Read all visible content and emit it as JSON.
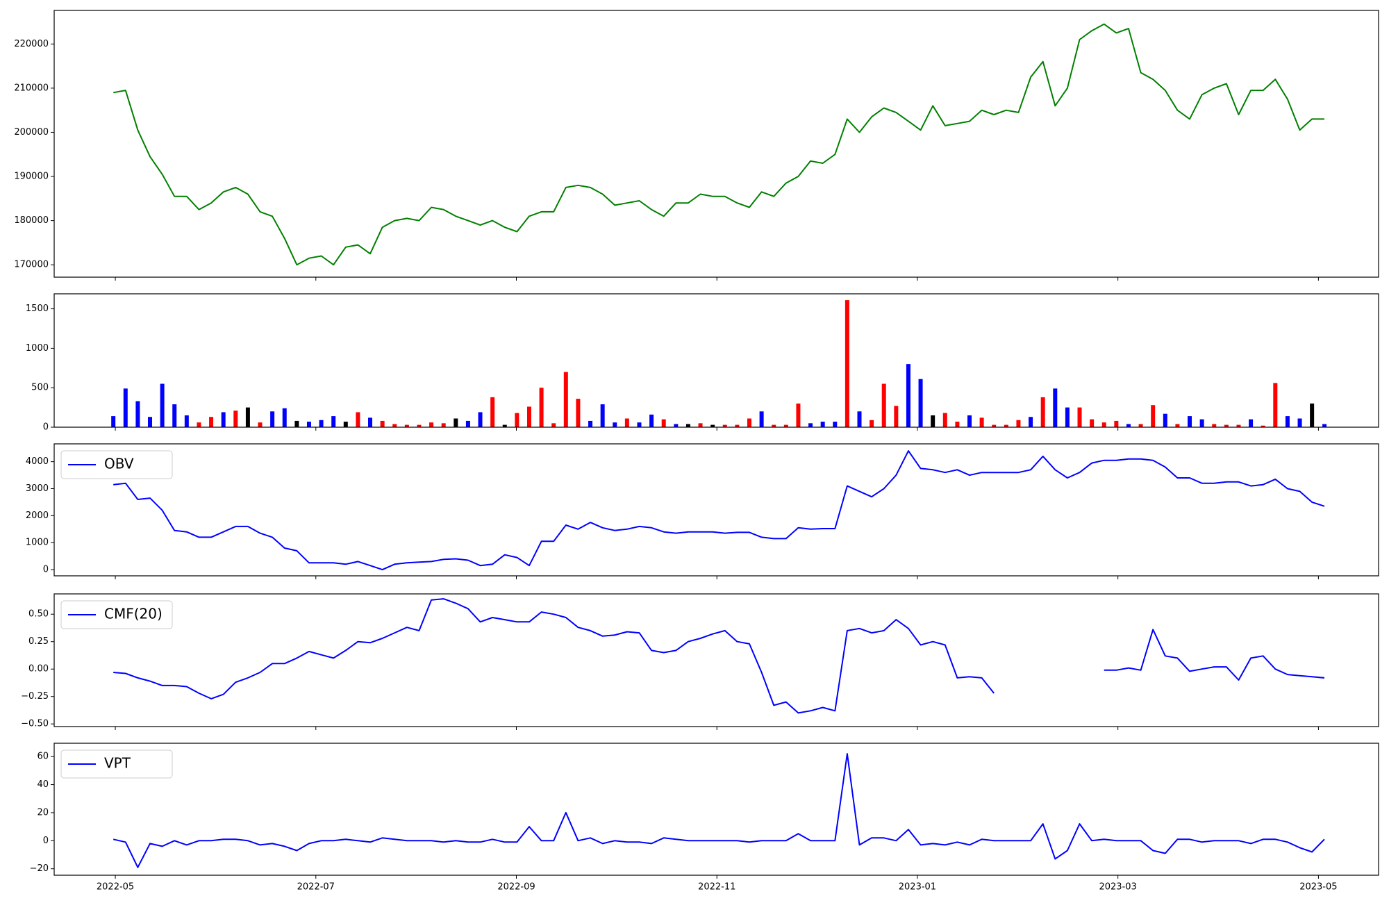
{
  "chart_data": {
    "type": "panels",
    "x": [
      4.98,
      5.102,
      5.224,
      5.346,
      5.468,
      5.59,
      5.712,
      5.834,
      5.956,
      6.078,
      6.2,
      6.322,
      6.444,
      6.566,
      6.688,
      6.81,
      6.932,
      7.054,
      7.176,
      7.298,
      7.42,
      7.542,
      7.664,
      7.786,
      7.908,
      8.03,
      8.152,
      8.274,
      8.396,
      8.518,
      8.64,
      8.762,
      8.884,
      9.006,
      9.128,
      9.25,
      9.372,
      9.494,
      9.616,
      9.738,
      9.86,
      9.982,
      10.104,
      10.226,
      10.348,
      10.47,
      10.592,
      10.714,
      10.836,
      10.958,
      11.08,
      11.202,
      11.324,
      11.446,
      11.568,
      11.69,
      11.812,
      11.934,
      12.056,
      12.178,
      12.3,
      12.422,
      12.544,
      12.666,
      12.788,
      12.91,
      13.032,
      13.154,
      13.276,
      13.398,
      13.52,
      13.642,
      13.764,
      13.886,
      14.008,
      14.13,
      14.252,
      14.374,
      14.496,
      14.618,
      14.74,
      14.862,
      14.984,
      15.106,
      15.228,
      15.35,
      15.472,
      15.594,
      15.716,
      15.838,
      15.96,
      16.082,
      16.204,
      16.326,
      16.448,
      16.57,
      16.692,
      16.814,
      16.936,
      17.06
    ],
    "xlim": [
      4.39,
      17.6
    ],
    "xticks": [
      {
        "value": 5,
        "label": "2022-05"
      },
      {
        "value": 7,
        "label": "2022-07"
      },
      {
        "value": 9,
        "label": "2022-09"
      },
      {
        "value": 11,
        "label": "2022-11"
      },
      {
        "value": 13,
        "label": "2023-01"
      },
      {
        "value": 15,
        "label": "2023-03"
      },
      {
        "value": 17,
        "label": "2023-05"
      }
    ],
    "panels": [
      {
        "type": "line",
        "ylim": [
          167200,
          227600
        ],
        "yticks": [
          170000,
          180000,
          190000,
          200000,
          210000,
          220000
        ],
        "series": [
          {
            "color": "green",
            "values": [
              209000,
              209500,
              200500,
              194500,
              190500,
              185500,
              185500,
              182500,
              184000,
              186500,
              187500,
              186000,
              182000,
              181000,
              176000,
              170000,
              171500,
              172000,
              170000,
              174000,
              174500,
              172500,
              178500,
              180000,
              180500,
              180000,
              183000,
              182500,
              181000,
              180000,
              179000,
              180000,
              178500,
              177500,
              181000,
              182000,
              182000,
              187500,
              188000,
              187500,
              186000,
              183500,
              184000,
              184500,
              182500,
              181000,
              184000,
              184000,
              186000,
              185500,
              185500,
              184000,
              183000,
              186500,
              185500,
              188500,
              190000,
              193500,
              193000,
              195000,
              203000,
              200000,
              203500,
              205500,
              204500,
              202500,
              200500,
              206000,
              201500,
              202000,
              202500,
              205000,
              204000,
              205000,
              204500,
              212500,
              216000,
              206000,
              210000,
              221000,
              223000,
              224500,
              222500,
              223500,
              213500,
              212000,
              209500,
              205000,
              203000,
              208500,
              210000,
              211000,
              204000,
              209500,
              209500,
              212000,
              207500,
              200500,
              203000,
              203000
            ]
          }
        ]
      },
      {
        "type": "bar",
        "ylim": [
          0,
          1690
        ],
        "yticks": [
          0,
          500,
          1000,
          1500
        ],
        "values": [
          140,
          490,
          330,
          130,
          550,
          290,
          150,
          60,
          130,
          190,
          210,
          250,
          60,
          200,
          240,
          80,
          70,
          90,
          140,
          70,
          190,
          120,
          80,
          40,
          30,
          30,
          60,
          50,
          110,
          80,
          190,
          380,
          30,
          180,
          260,
          500,
          50,
          700,
          360,
          80,
          290,
          60,
          110,
          60,
          160,
          100,
          40,
          40,
          50,
          30,
          30,
          30,
          110,
          200,
          30,
          30,
          300,
          50,
          70,
          70,
          1610,
          200,
          90,
          550,
          270,
          800,
          610,
          150,
          180,
          70,
          150,
          120,
          30,
          30,
          90,
          130,
          380,
          490,
          250,
          250,
          100,
          60,
          80,
          40,
          40,
          280,
          170,
          40,
          140,
          100,
          40,
          30,
          30,
          100,
          20,
          560,
          140,
          110,
          300,
          40
        ],
        "colors": [
          "blue",
          "blue",
          "blue",
          "blue",
          "blue",
          "blue",
          "blue",
          "red",
          "red",
          "blue",
          "red",
          "black",
          "red",
          "blue",
          "blue",
          "black",
          "blue",
          "blue",
          "blue",
          "black",
          "red",
          "blue",
          "red",
          "red",
          "red",
          "red",
          "red",
          "red",
          "black",
          "blue",
          "blue",
          "red",
          "black",
          "red",
          "red",
          "red",
          "red",
          "red",
          "red",
          "blue",
          "blue",
          "blue",
          "red",
          "blue",
          "blue",
          "red",
          "blue",
          "black",
          "red",
          "black",
          "red",
          "red",
          "red",
          "blue",
          "red",
          "red",
          "red",
          "blue",
          "blue",
          "blue",
          "red",
          "blue",
          "red",
          "red",
          "red",
          "blue",
          "blue",
          "black",
          "red",
          "red",
          "blue",
          "red",
          "red",
          "red",
          "red",
          "blue",
          "red",
          "blue",
          "blue",
          "red",
          "red",
          "red",
          "red",
          "blue",
          "red",
          "red",
          "blue",
          "red",
          "blue",
          "blue",
          "red",
          "red",
          "red",
          "blue",
          "red",
          "red",
          "blue",
          "blue",
          "black",
          "blue"
        ]
      },
      {
        "type": "line",
        "ylim": [
          -230,
          4660
        ],
        "yticks": [
          0,
          1000,
          2000,
          3000,
          4000
        ],
        "legend": "upper left",
        "series": [
          {
            "name": "OBV",
            "color": "blue",
            "values": [
              3150,
              3200,
              2600,
              2650,
              2200,
              1450,
              1400,
              1200,
              1200,
              1400,
              1600,
              1600,
              1350,
              1200,
              800,
              700,
              250,
              250,
              250,
              200,
              300,
              150,
              0,
              200,
              250,
              280,
              300,
              380,
              400,
              350,
              150,
              200,
              550,
              450,
              150,
              1050,
              1050,
              1650,
              1500,
              1750,
              1550,
              1450,
              1500,
              1600,
              1550,
              1400,
              1350,
              1400,
              1400,
              1400,
              1350,
              1380,
              1380,
              1200,
              1150,
              1150,
              1550,
              1500,
              1520,
              1520,
              3100,
              2900,
              2700,
              3000,
              3500,
              4400,
              3750,
              3700,
              3600,
              3700,
              3500,
              3600,
              3600,
              3600,
              3600,
              3700,
              4200,
              3700,
              3400,
              3600,
              3950,
              4050,
              4050,
              4100,
              4100,
              4050,
              3800,
              3400,
              3400,
              3200,
              3200,
              3250,
              3250,
              3100,
              3150,
              3350,
              3000,
              2900,
              2500,
              2350
            ]
          }
        ]
      },
      {
        "type": "line",
        "ylim": [
          -0.524,
          0.685
        ],
        "yticks": [
          {
            "value": -0.5,
            "label": "−0.50"
          },
          {
            "value": -0.25,
            "label": "−0.25"
          },
          {
            "value": 0,
            "label": "0.00"
          },
          {
            "value": 0.25,
            "label": "0.25"
          },
          {
            "value": 0.5,
            "label": "0.50"
          }
        ],
        "legend": "upper left",
        "series": [
          {
            "name": "CMF(20)",
            "color": "blue",
            "values": [
              -0.03,
              -0.04,
              -0.08,
              -0.11,
              -0.15,
              -0.15,
              -0.16,
              -0.22,
              -0.27,
              -0.23,
              -0.12,
              -0.08,
              -0.03,
              0.05,
              0.05,
              0.1,
              0.16,
              0.13,
              0.1,
              0.17,
              0.25,
              0.24,
              0.28,
              0.33,
              0.38,
              0.35,
              0.63,
              0.64,
              0.6,
              0.55,
              0.43,
              0.47,
              0.45,
              0.43,
              0.43,
              0.52,
              0.5,
              0.47,
              0.38,
              0.35,
              0.3,
              0.31,
              0.34,
              0.33,
              0.17,
              0.15,
              0.17,
              0.25,
              0.28,
              0.32,
              0.35,
              0.25,
              0.23,
              -0.03,
              -0.33,
              -0.3,
              -0.4,
              -0.38,
              -0.35,
              -0.38,
              0.35,
              0.37,
              0.33,
              0.35,
              0.45,
              0.37,
              0.22,
              0.25,
              0.22,
              -0.08,
              -0.07,
              -0.08,
              -0.22,
              null,
              null,
              null,
              null,
              null,
              null,
              null,
              null,
              -0.01,
              -0.01,
              0.01,
              -0.01,
              0.36,
              0.12,
              0.1,
              -0.02,
              0,
              0.02,
              0.02,
              -0.1,
              0.1,
              0.12,
              0,
              -0.05,
              -0.06,
              -0.07,
              -0.08
            ]
          }
        ]
      },
      {
        "type": "line",
        "ylim": [
          -24.6,
          69.5
        ],
        "yticks": [
          {
            "value": -20,
            "label": "−20"
          },
          0,
          20,
          40,
          60
        ],
        "legend": "upper left",
        "series": [
          {
            "name": "VPT",
            "color": "blue",
            "values": [
              1,
              -1,
              -19,
              -2,
              -4,
              0,
              -3,
              0,
              0,
              1,
              1,
              0,
              -3,
              -2,
              -4,
              -7,
              -2,
              0,
              0,
              1,
              0,
              -1,
              2,
              1,
              0,
              0,
              0,
              -1,
              0,
              -1,
              -1,
              1,
              -1,
              -1,
              10,
              0,
              0,
              20,
              0,
              2,
              -2,
              0,
              -1,
              -1,
              -2,
              2,
              1,
              0,
              0,
              0,
              0,
              0,
              -1,
              0,
              0,
              0,
              5,
              0,
              0,
              0,
              62,
              -3,
              2,
              2,
              0,
              8,
              -3,
              -2,
              -3,
              -1,
              -3,
              1,
              0,
              0,
              0,
              0,
              12,
              -13,
              -7,
              12,
              0,
              1,
              0,
              0,
              0,
              -7,
              -9,
              1,
              1,
              -1,
              0,
              0,
              0,
              -2,
              1,
              1,
              -1,
              -5,
              -8,
              1
            ]
          }
        ]
      }
    ]
  }
}
